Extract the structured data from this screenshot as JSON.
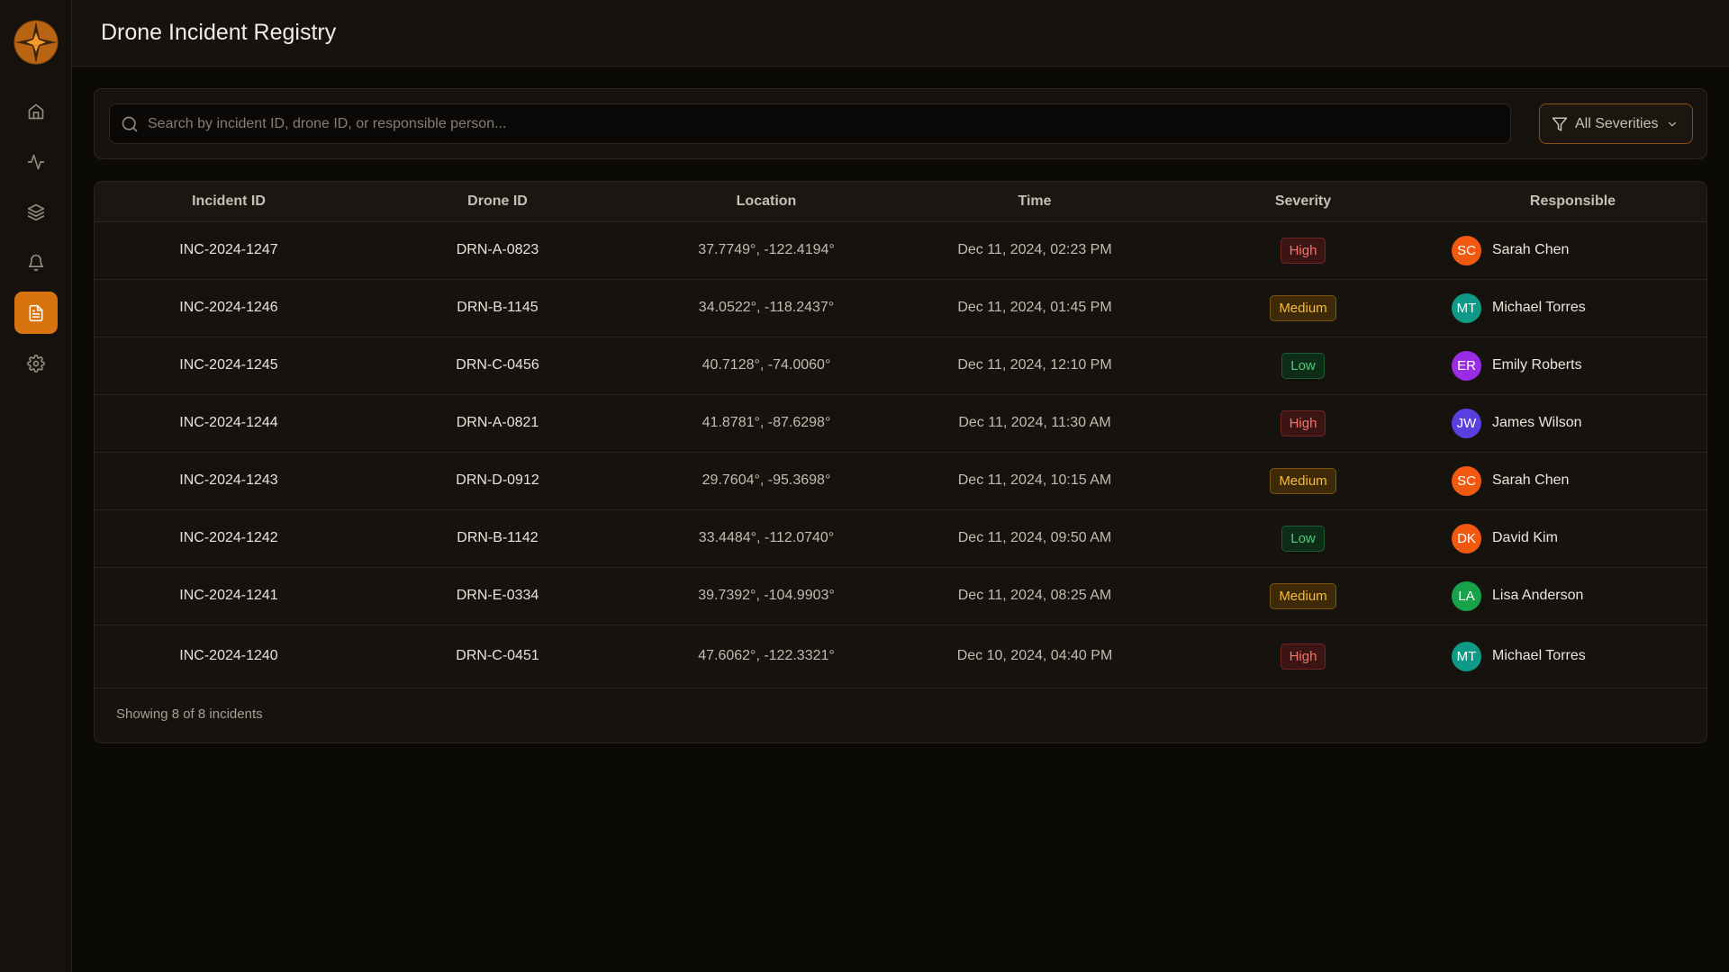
{
  "app": {
    "title": "Drone Incident Registry",
    "brand_color": "#d8720e",
    "logo_icon": "compass-star-logo"
  },
  "sidebar": {
    "items": [
      {
        "name": "home",
        "icon": "home-icon",
        "active": false
      },
      {
        "name": "activity",
        "icon": "activity-icon",
        "active": false
      },
      {
        "name": "layers",
        "icon": "layers-icon",
        "active": false
      },
      {
        "name": "notifications",
        "icon": "bell-icon",
        "active": false
      },
      {
        "name": "incidents",
        "icon": "document-icon",
        "active": true
      },
      {
        "name": "settings",
        "icon": "gear-icon",
        "active": false
      }
    ]
  },
  "search": {
    "placeholder": "Search by incident ID, drone ID, or responsible person...",
    "value": ""
  },
  "filter": {
    "label": "All Severities"
  },
  "table": {
    "columns": [
      "Incident ID",
      "Drone ID",
      "Location",
      "Time",
      "Severity",
      "Responsible"
    ],
    "rows": [
      {
        "incident_id": "INC-2024-1247",
        "drone_id": "DRN-A-0823",
        "location": "37.7749°, -122.4194°",
        "time": "Dec 11, 2024, 02:23 PM",
        "severity": "High",
        "initials": "SC",
        "person": "Sarah Chen",
        "avatar_color": "#f0590f"
      },
      {
        "incident_id": "INC-2024-1246",
        "drone_id": "DRN-B-1145",
        "location": "34.0522°, -118.2437°",
        "time": "Dec 11, 2024, 01:45 PM",
        "severity": "Medium",
        "initials": "MT",
        "person": "Michael Torres",
        "avatar_color": "#0f9a88"
      },
      {
        "incident_id": "INC-2024-1245",
        "drone_id": "DRN-C-0456",
        "location": "40.7128°, -74.0060°",
        "time": "Dec 11, 2024, 12:10 PM",
        "severity": "Low",
        "initials": "ER",
        "person": "Emily Roberts",
        "avatar_color": "#9a2ce6"
      },
      {
        "incident_id": "INC-2024-1244",
        "drone_id": "DRN-A-0821",
        "location": "41.8781°, -87.6298°",
        "time": "Dec 11, 2024, 11:30 AM",
        "severity": "High",
        "initials": "JW",
        "person": "James Wilson",
        "avatar_color": "#5a3fe0"
      },
      {
        "incident_id": "INC-2024-1243",
        "drone_id": "DRN-D-0912",
        "location": "29.7604°, -95.3698°",
        "time": "Dec 11, 2024, 10:15 AM",
        "severity": "Medium",
        "initials": "SC",
        "person": "Sarah Chen",
        "avatar_color": "#f0590f"
      },
      {
        "incident_id": "INC-2024-1242",
        "drone_id": "DRN-B-1142",
        "location": "33.4484°, -112.0740°",
        "time": "Dec 11, 2024, 09:50 AM",
        "severity": "Low",
        "initials": "DK",
        "person": "David Kim",
        "avatar_color": "#f0590f"
      },
      {
        "incident_id": "INC-2024-1241",
        "drone_id": "DRN-E-0334",
        "location": "39.7392°, -104.9903°",
        "time": "Dec 11, 2024, 08:25 AM",
        "severity": "Medium",
        "initials": "LA",
        "person": "Lisa Anderson",
        "avatar_color": "#17a34a"
      },
      {
        "incident_id": "INC-2024-1240",
        "drone_id": "DRN-C-0451",
        "location": "47.6062°, -122.3321°",
        "time": "Dec 10, 2024, 04:40 PM",
        "severity": "High",
        "initials": "MT",
        "person": "Michael Torres",
        "avatar_color": "#0f9a88"
      }
    ]
  },
  "footer": {
    "summary": "Showing 8 of 8 incidents"
  }
}
